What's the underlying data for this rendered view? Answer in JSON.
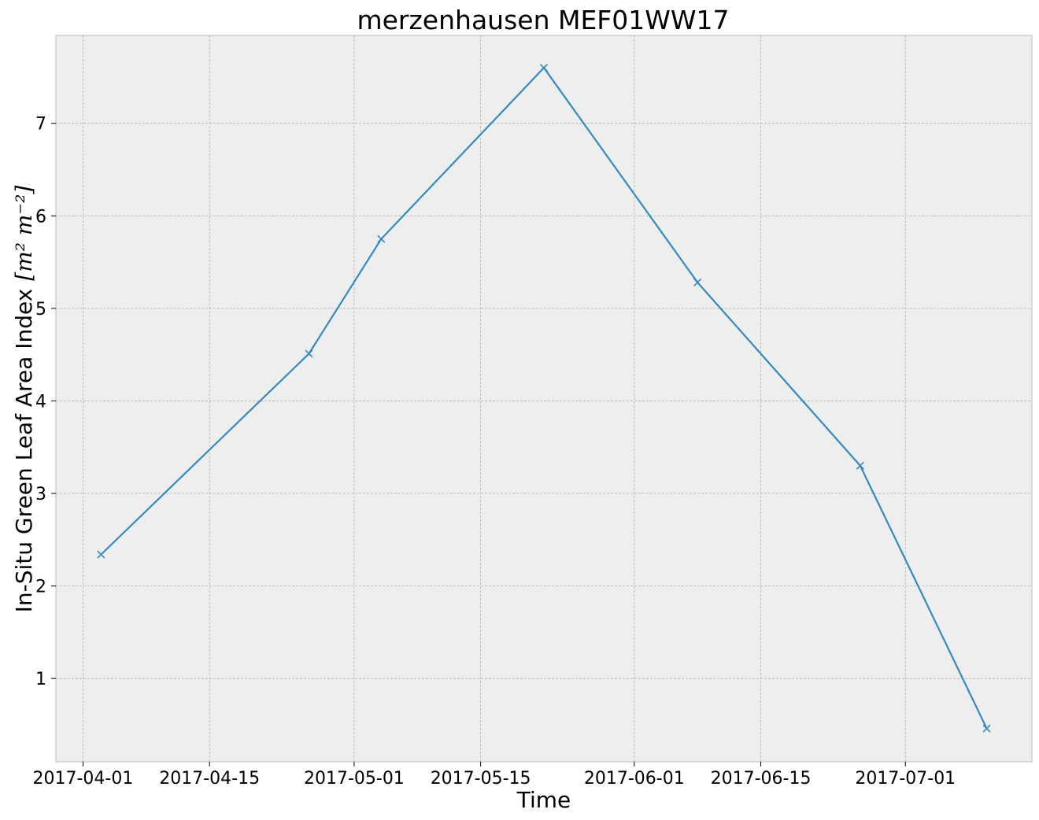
{
  "chart_data": {
    "type": "line",
    "title": "merzenhausen MEF01WW17",
    "xlabel": "Time",
    "ylabel": "In-Situ Green Leaf Area Index",
    "ylabel_unit": "[m² m⁻²]",
    "x_tick_labels": [
      "2017-04-01",
      "2017-04-15",
      "2017-05-01",
      "2017-05-15",
      "2017-06-01",
      "2017-06-15",
      "2017-07-01"
    ],
    "y_ticks": [
      1,
      2,
      3,
      4,
      5,
      6,
      7
    ],
    "xlim": [
      "2017-03-29",
      "2017-07-15"
    ],
    "ylim": [
      0.1,
      7.95
    ],
    "grid": true,
    "marker": "x",
    "colors": {
      "line": "#348abd",
      "plot_bg": "#eeeeee",
      "axis_edge": "#bcbcbc"
    },
    "series": [
      {
        "x": [
          "2017-04-03",
          "2017-04-26",
          "2017-05-04",
          "2017-05-22",
          "2017-06-08",
          "2017-06-26",
          "2017-07-10"
        ],
        "y": [
          2.34,
          4.51,
          5.75,
          7.6,
          5.28,
          3.3,
          0.46
        ]
      }
    ]
  }
}
